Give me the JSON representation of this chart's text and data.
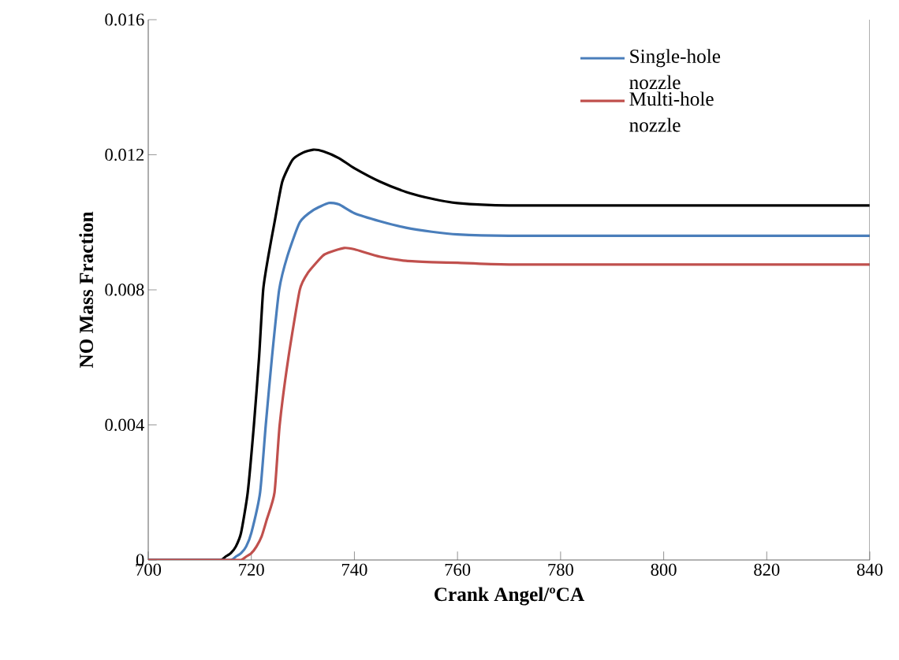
{
  "chart_data": {
    "type": "line",
    "xlabel": "Crank Angel/ºCA",
    "ylabel": "NO Mass Fraction",
    "xlim": [
      700,
      840
    ],
    "ylim": [
      0,
      0.016
    ],
    "xticks": [
      700,
      720,
      740,
      760,
      780,
      800,
      820,
      840
    ],
    "yticks": [
      0,
      0.004,
      0.008,
      0.012,
      0.016
    ],
    "grid": false,
    "legend": "top right",
    "marker": "none",
    "line_style": "solid",
    "series": [
      {
        "color": "#000000",
        "x": [
          700,
          710,
          714,
          715,
          716,
          717,
          718,
          719.3,
          720.5,
          721.5,
          722.3,
          723.3,
          724.5,
          726,
          728,
          730,
          732,
          734,
          737,
          740,
          745,
          750,
          755,
          760,
          770,
          800,
          840
        ],
        "values": [
          0,
          0,
          0,
          0.0001,
          0.0002,
          0.0004,
          0.0008,
          0.002,
          0.004,
          0.006,
          0.008,
          0.009,
          0.01,
          0.0112,
          0.01185,
          0.01206,
          0.01215,
          0.0121,
          0.0119,
          0.0116,
          0.0112,
          0.0109,
          0.0107,
          0.01057,
          0.0105,
          0.0105,
          0.0105
        ]
      },
      {
        "name": "Single-hole nozzle",
        "color": "#4a7ebb",
        "x": [
          700,
          712,
          716,
          717,
          718,
          719,
          720,
          721.7,
          722.8,
          724,
          725.4,
          727,
          729.4,
          732,
          735,
          737,
          740,
          745,
          750,
          755,
          760,
          770,
          800,
          840
        ],
        "values": [
          0,
          0,
          0,
          0.0001,
          0.0002,
          0.0004,
          0.0008,
          0.002,
          0.004,
          0.006,
          0.008,
          0.009,
          0.01,
          0.01036,
          0.01057,
          0.01053,
          0.01027,
          0.01003,
          0.00984,
          0.00972,
          0.00964,
          0.0096,
          0.0096,
          0.0096
        ]
      },
      {
        "name": "Multi-hole nozzle",
        "color": "#c0504d",
        "x": [
          700,
          715,
          718,
          719,
          720,
          721,
          722,
          723,
          724.5,
          725.5,
          727.2,
          729.4,
          731,
          733.8,
          735,
          738,
          740,
          745,
          750,
          755,
          760,
          770,
          800,
          840
        ],
        "values": [
          0,
          0,
          0,
          0.0001,
          0.0002,
          0.0004,
          0.0007,
          0.0012,
          0.002,
          0.004,
          0.006,
          0.008,
          0.00851,
          0.009,
          0.0091,
          0.00924,
          0.0092,
          0.00898,
          0.00886,
          0.00882,
          0.0088,
          0.00875,
          0.00875,
          0.00875
        ]
      }
    ]
  }
}
